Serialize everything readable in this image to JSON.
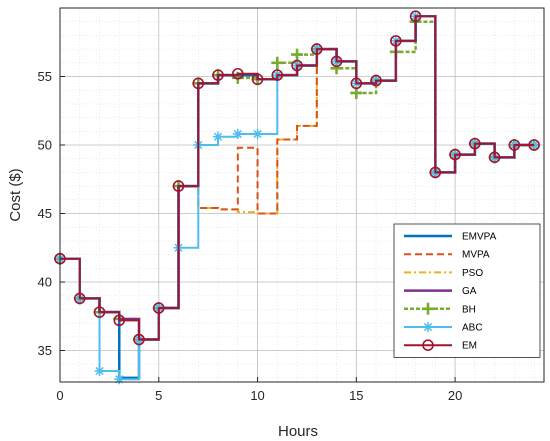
{
  "chart_data": {
    "type": "line",
    "step": true,
    "xlabel": "Hours",
    "ylabel": "Cost ($)",
    "xlim": [
      0,
      24.5
    ],
    "ylim": [
      32.7,
      60
    ],
    "xticks": [
      0,
      5,
      10,
      15,
      20
    ],
    "yticks": [
      35,
      40,
      45,
      50,
      55
    ],
    "grid": true,
    "legend_position": "lower-right",
    "x": [
      0,
      1,
      2,
      3,
      4,
      5,
      6,
      7,
      8,
      9,
      10,
      11,
      12,
      13,
      14,
      15,
      16,
      17,
      18,
      19,
      20,
      21,
      22,
      23,
      24
    ],
    "series": [
      {
        "name": "EMVPA",
        "color": "#0072BD",
        "dash": "",
        "width": 2.5,
        "marker": "none",
        "values": [
          41.7,
          38.8,
          37.8,
          33.0,
          35.8,
          38.1,
          47.0,
          54.5,
          55.1,
          55.1,
          54.8,
          55.1,
          55.8,
          57.0,
          56.1,
          54.5,
          54.7,
          57.6,
          59.4,
          48.0,
          49.3,
          50.1,
          49.1,
          50.0,
          50.0
        ]
      },
      {
        "name": "MVPA",
        "color": "#D95319",
        "dash": "7,4",
        "width": 2,
        "marker": "none",
        "values": [
          41.7,
          38.8,
          37.8,
          33.0,
          35.8,
          38.1,
          47.0,
          45.4,
          45.3,
          49.8,
          45.0,
          50.4,
          51.4,
          57.0,
          56.1,
          54.5,
          54.7,
          57.6,
          59.4,
          48.0,
          49.3,
          50.1,
          49.1,
          50.0,
          50.0
        ]
      },
      {
        "name": "PSO",
        "color": "#EDB120",
        "dash": "7,3,2,3",
        "width": 2,
        "marker": "none",
        "values": [
          41.7,
          38.8,
          37.8,
          33.0,
          35.8,
          38.1,
          47.0,
          45.4,
          45.3,
          45.1,
          45.0,
          50.4,
          51.4,
          57.0,
          56.1,
          54.5,
          54.7,
          57.6,
          59.4,
          48.0,
          49.3,
          50.1,
          49.1,
          50.0,
          50.0
        ]
      },
      {
        "name": "GA",
        "color": "#7E2F8E",
        "dash": "",
        "width": 2.5,
        "marker": "none",
        "values": [
          41.7,
          38.8,
          37.8,
          37.3,
          35.8,
          38.1,
          47.0,
          54.5,
          55.1,
          55.1,
          54.8,
          55.1,
          55.8,
          57.0,
          56.1,
          54.5,
          54.7,
          57.6,
          59.4,
          48.0,
          49.3,
          50.1,
          49.1,
          50.0,
          50.0
        ]
      },
      {
        "name": "BH",
        "color": "#77AC30",
        "dash": "4,2",
        "width": 2.5,
        "marker": "plus",
        "values": [
          41.7,
          38.8,
          37.8,
          37.3,
          35.8,
          38.1,
          47.0,
          54.5,
          55.1,
          54.9,
          54.8,
          56.0,
          56.6,
          57.0,
          55.6,
          53.8,
          54.7,
          56.8,
          59.0,
          48.0,
          49.3,
          50.1,
          49.1,
          50.0,
          50.0
        ]
      },
      {
        "name": "ABC",
        "color": "#4DBEEE",
        "dash": "",
        "width": 2,
        "marker": "star",
        "values": [
          41.7,
          38.8,
          33.5,
          32.9,
          35.8,
          38.1,
          42.5,
          50.0,
          50.6,
          50.8,
          50.8,
          55.1,
          55.8,
          57.0,
          56.1,
          54.5,
          54.7,
          57.6,
          59.4,
          48.0,
          49.3,
          50.1,
          49.1,
          50.0,
          50.0
        ]
      },
      {
        "name": "EM",
        "color": "#A2142F",
        "dash": "",
        "width": 2,
        "marker": "circle",
        "values": [
          41.7,
          38.8,
          37.8,
          37.2,
          35.8,
          38.1,
          47.0,
          54.5,
          55.1,
          55.2,
          54.8,
          55.1,
          55.8,
          57.0,
          56.1,
          54.5,
          54.7,
          57.6,
          59.4,
          48.0,
          49.3,
          50.1,
          49.1,
          50.0,
          50.0
        ]
      }
    ]
  }
}
